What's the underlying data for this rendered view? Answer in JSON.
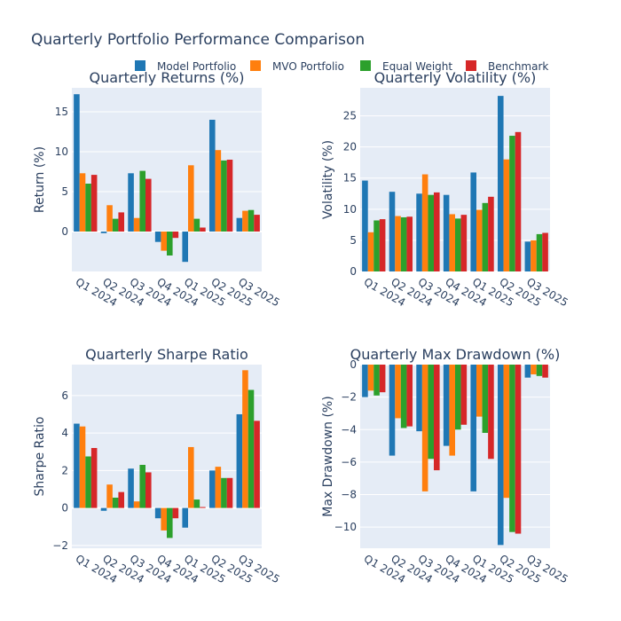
{
  "title": "Quarterly Portfolio Performance Comparison",
  "colors": {
    "Model Portfolio": "#1f77b4",
    "MVO Portfolio": "#ff7f0e",
    "Equal Weight": "#2ca02c",
    "Benchmark": "#d62728",
    "plot_bg": "#e5ecf6",
    "grid": "#ffffff"
  },
  "legend": {
    "placement": "top-center",
    "entries": [
      "Model Portfolio",
      "MVO Portfolio",
      "Equal Weight",
      "Benchmark"
    ]
  },
  "chart_data": [
    {
      "type": "bar",
      "title": "Quarterly Returns (%)",
      "xlabel": "",
      "ylabel": "Return (%)",
      "categories": [
        "Q1 2024",
        "Q2 2024",
        "Q3 2024",
        "Q4 2024",
        "Q1 2025",
        "Q2 2025",
        "Q3 2025"
      ],
      "ylim": [
        -5,
        18
      ],
      "yticks": [
        0,
        5,
        10,
        15
      ],
      "series": [
        {
          "name": "Model Portfolio",
          "values": [
            17.2,
            -0.2,
            7.3,
            -1.3,
            -3.8,
            14.0,
            1.7
          ]
        },
        {
          "name": "MVO Portfolio",
          "values": [
            7.3,
            3.3,
            1.7,
            -2.4,
            8.3,
            10.2,
            2.6
          ]
        },
        {
          "name": "Equal Weight",
          "values": [
            6.0,
            1.6,
            7.6,
            -3.0,
            1.6,
            8.9,
            2.7
          ]
        },
        {
          "name": "Benchmark",
          "values": [
            7.1,
            2.4,
            6.6,
            -0.8,
            0.5,
            9.0,
            2.1
          ]
        }
      ]
    },
    {
      "type": "bar",
      "title": "Quarterly Volatility (%)",
      "xlabel": "",
      "ylabel": "Volatility (%)",
      "categories": [
        "Q1 2024",
        "Q2 2024",
        "Q3 2024",
        "Q4 2024",
        "Q1 2025",
        "Q2 2025",
        "Q3 2025"
      ],
      "ylim": [
        0,
        29.5
      ],
      "yticks": [
        0,
        5,
        10,
        15,
        20,
        25
      ],
      "series": [
        {
          "name": "Model Portfolio",
          "values": [
            14.6,
            12.8,
            12.5,
            12.3,
            15.9,
            28.2,
            4.8
          ]
        },
        {
          "name": "MVO Portfolio",
          "values": [
            6.3,
            8.9,
            15.6,
            9.2,
            9.9,
            18.0,
            5.0
          ]
        },
        {
          "name": "Equal Weight",
          "values": [
            8.2,
            8.7,
            12.3,
            8.5,
            11.0,
            21.8,
            6.0
          ]
        },
        {
          "name": "Benchmark",
          "values": [
            8.4,
            8.8,
            12.7,
            9.1,
            12.0,
            22.4,
            6.2
          ]
        }
      ]
    },
    {
      "type": "bar",
      "title": "Quarterly Sharpe Ratio",
      "xlabel": "",
      "ylabel": "Sharpe Ratio",
      "categories": [
        "Q1 2024",
        "Q2 2024",
        "Q3 2024",
        "Q4 2024",
        "Q1 2025",
        "Q2 2025",
        "Q3 2025"
      ],
      "ylim": [
        -2.15,
        7.65
      ],
      "yticks": [
        -2,
        0,
        2,
        4,
        6
      ],
      "series": [
        {
          "name": "Model Portfolio",
          "values": [
            4.5,
            -0.15,
            2.1,
            -0.55,
            -1.05,
            2.0,
            5.0
          ]
        },
        {
          "name": "MVO Portfolio",
          "values": [
            4.35,
            1.25,
            0.35,
            -1.2,
            3.25,
            2.2,
            7.35
          ]
        },
        {
          "name": "Equal Weight",
          "values": [
            2.75,
            0.55,
            2.3,
            -1.6,
            0.45,
            1.6,
            6.3
          ]
        },
        {
          "name": "Benchmark",
          "values": [
            3.2,
            0.85,
            1.9,
            -0.55,
            0.05,
            1.6,
            4.65
          ]
        }
      ]
    },
    {
      "type": "bar",
      "title": "Quarterly Max Drawdown (%)",
      "xlabel": "",
      "ylabel": "Max Drawdown (%)",
      "categories": [
        "Q1 2024",
        "Q2 2024",
        "Q3 2024",
        "Q4 2024",
        "Q1 2025",
        "Q2 2025",
        "Q3 2025"
      ],
      "ylim": [
        -11.3,
        0
      ],
      "yticks": [
        0,
        -2,
        -4,
        -6,
        -8,
        -10
      ],
      "series": [
        {
          "name": "Model Portfolio",
          "values": [
            -2.0,
            -5.6,
            -4.1,
            -5.0,
            -7.8,
            -11.1,
            -0.8
          ]
        },
        {
          "name": "MVO Portfolio",
          "values": [
            -1.6,
            -3.3,
            -7.8,
            -5.6,
            -3.2,
            -8.2,
            -0.6
          ]
        },
        {
          "name": "Equal Weight",
          "values": [
            -1.9,
            -3.9,
            -5.8,
            -4.0,
            -4.2,
            -10.3,
            -0.7
          ]
        },
        {
          "name": "Benchmark",
          "values": [
            -1.7,
            -3.8,
            -6.5,
            -3.7,
            -5.8,
            -10.4,
            -0.8
          ]
        }
      ]
    }
  ]
}
